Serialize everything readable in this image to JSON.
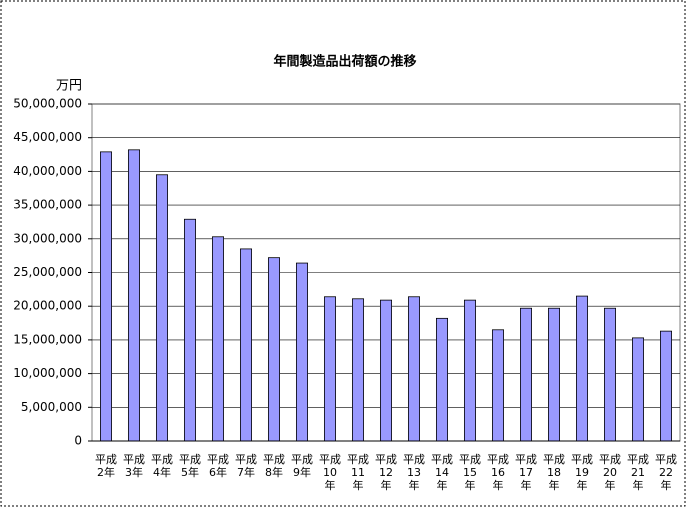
{
  "chart_data": {
    "type": "bar",
    "title": "年間製造品出荷額の推移",
    "y_unit": "万円",
    "categories": [
      "平成2年",
      "平成3年",
      "平成4年",
      "平成5年",
      "平成6年",
      "平成7年",
      "平成8年",
      "平成9年",
      "平成10年",
      "平成11年",
      "平成12年",
      "平成13年",
      "平成14年",
      "平成15年",
      "平成16年",
      "平成17年",
      "平成18年",
      "平成19年",
      "平成20年",
      "平成21年",
      "平成22年"
    ],
    "values": [
      42900000,
      43200000,
      39500000,
      32900000,
      30300000,
      28500000,
      27200000,
      26400000,
      21400000,
      21100000,
      20900000,
      21400000,
      18200000,
      20900000,
      16500000,
      19700000,
      19700000,
      21500000,
      19700000,
      15300000,
      16300000
    ],
    "color": "#9999ff",
    "ylim": [
      0,
      50000000
    ],
    "yticks": [
      0,
      {
        "value": 5000000,
        "label": "5,000,000"
      },
      {
        "value": 10000000,
        "label": "10,000,000"
      },
      {
        "value": 15000000,
        "label": "15,000,000"
      },
      {
        "value": 20000000,
        "label": "20,000,000"
      },
      {
        "value": 25000000,
        "label": "25,000,000"
      },
      {
        "value": 30000000,
        "label": "30,000,000"
      },
      {
        "value": 35000000,
        "label": "35,000,000"
      },
      {
        "value": 40000000,
        "label": "40,000,000"
      },
      {
        "value": 45000000,
        "label": "45,000,000"
      },
      {
        "value": 50000000,
        "label": "50,000,000"
      }
    ],
    "grid": true
  }
}
